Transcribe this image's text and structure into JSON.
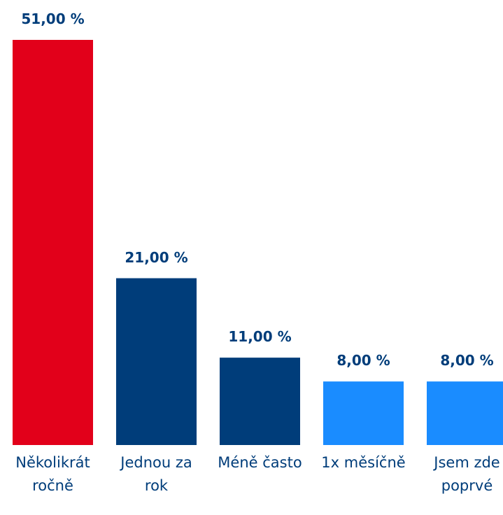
{
  "chart_data": {
    "type": "bar",
    "categories": [
      "Několikrát ročně",
      "Jednou za rok",
      "Méně často",
      "1x měsíčně",
      "Jsem zde poprvé"
    ],
    "values": [
      51,
      21,
      11,
      8,
      8
    ],
    "value_labels": [
      "51,00 %",
      "21,00 %",
      "11,00 %",
      "8,00 %",
      "8,00 %"
    ],
    "colors": [
      "#e2001a",
      "#003d7a",
      "#003d7a",
      "#1a8cff",
      "#1a8cff"
    ]
  }
}
